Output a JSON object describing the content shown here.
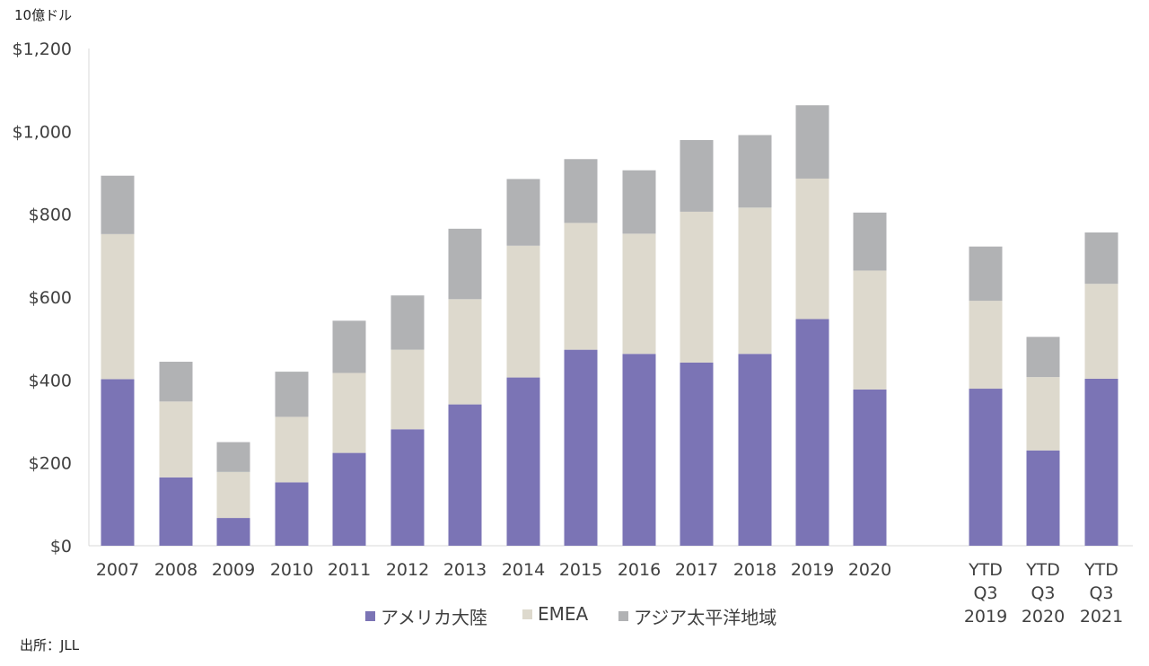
{
  "unit_label": "10億ドル",
  "source": "出所：JLL",
  "chart_data": {
    "type": "bar",
    "stacked": true,
    "categories": [
      "2007",
      "2008",
      "2009",
      "2010",
      "2011",
      "2012",
      "2013",
      "2014",
      "2015",
      "2016",
      "2017",
      "2018",
      "2019",
      "2020",
      "YTD Q3 2019",
      "YTD Q3 2020",
      "YTD Q3 2021"
    ],
    "series": [
      {
        "name": "アメリカ大陸",
        "color": "#7b74b5",
        "values": [
          402,
          165,
          67,
          153,
          224,
          281,
          341,
          406,
          473,
          463,
          442,
          463,
          547,
          377,
          379,
          230,
          403
        ]
      },
      {
        "name": "EMEA",
        "color": "#ddd9cd",
        "values": [
          350,
          183,
          111,
          158,
          193,
          192,
          254,
          318,
          306,
          290,
          364,
          353,
          339,
          287,
          212,
          177,
          229
        ]
      },
      {
        "name": "アジア太平洋地域",
        "color": "#b1b2b4",
        "values": [
          141,
          96,
          72,
          109,
          126,
          131,
          170,
          161,
          154,
          153,
          173,
          175,
          177,
          140,
          131,
          97,
          124
        ]
      }
    ],
    "ylim": [
      0,
      1200
    ],
    "yticks": [
      "$0",
      "$200",
      "$400",
      "$600",
      "$800",
      "$1,000",
      "$1,200"
    ],
    "ytick_values": [
      0,
      200,
      400,
      600,
      800,
      1000,
      1200
    ],
    "grid": false,
    "legend_position": "bottom"
  }
}
